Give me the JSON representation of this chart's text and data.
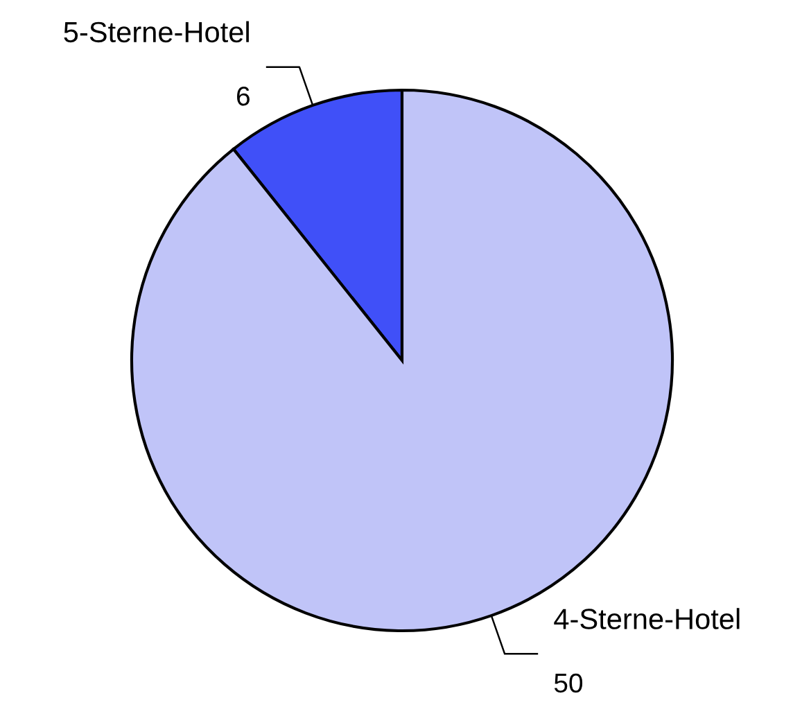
{
  "chart_data": {
    "type": "pie",
    "categories": [
      "5-Sterne-Hotel",
      "4-Sterne-Hotel"
    ],
    "values": [
      6,
      50
    ],
    "colors": [
      "#4050f8",
      "#c0c4f8"
    ],
    "data_labels": true
  }
}
